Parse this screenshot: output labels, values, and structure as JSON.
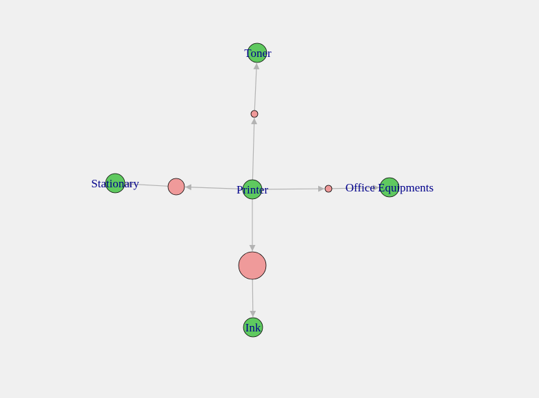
{
  "graph": {
    "nodes": [
      {
        "id": "printer",
        "label": "Printer",
        "kind": "item",
        "color": "#5fc95f"
      },
      {
        "id": "toner",
        "label": "Toner",
        "kind": "item",
        "color": "#5fc95f"
      },
      {
        "id": "stationary",
        "label": "Stationary",
        "kind": "item",
        "color": "#5fc95f"
      },
      {
        "id": "office",
        "label": "Office Equipments",
        "kind": "item",
        "color": "#5fc95f"
      },
      {
        "id": "ink",
        "label": "Ink",
        "kind": "item",
        "color": "#5fc95f"
      },
      {
        "id": "rule-toner",
        "label": "",
        "kind": "rule",
        "color": "#ef9a9a"
      },
      {
        "id": "rule-stationary",
        "label": "",
        "kind": "rule",
        "color": "#ef9a9a"
      },
      {
        "id": "rule-office",
        "label": "",
        "kind": "rule",
        "color": "#ef9a9a"
      },
      {
        "id": "rule-ink",
        "label": "",
        "kind": "rule",
        "color": "#ef9a9a"
      }
    ],
    "edges": [
      {
        "from": "printer",
        "to": "rule-toner"
      },
      {
        "from": "rule-toner",
        "to": "toner"
      },
      {
        "from": "printer",
        "to": "rule-stationary"
      },
      {
        "from": "rule-stationary",
        "to": "stationary"
      },
      {
        "from": "printer",
        "to": "rule-office"
      },
      {
        "from": "rule-office",
        "to": "office"
      },
      {
        "from": "printer",
        "to": "rule-ink"
      },
      {
        "from": "rule-ink",
        "to": "ink"
      }
    ],
    "edge_color": "#b3b3b3"
  }
}
